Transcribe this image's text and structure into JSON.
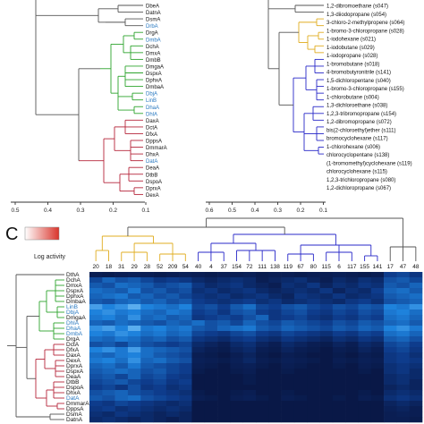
{
  "panel_c_label": "C",
  "colorbar": {
    "label": "Log activity",
    "low_color": "#ffffff",
    "high_color": "#d9342b"
  },
  "colors": {
    "green": "#2ea42e",
    "red": "#b5253a",
    "yellow": "#e0ac20",
    "blue": "#2929c8",
    "tree": "#555555",
    "highlight": "#2878c0"
  },
  "tree_a": {
    "axis_ticks": [
      "0.5",
      "0.4",
      "0.3",
      "0.2",
      "0.1"
    ],
    "leaves": [
      {
        "label": "DbeA",
        "clade": "gray",
        "highlight": false
      },
      {
        "label": "DatnA",
        "clade": "gray",
        "highlight": false
      },
      {
        "label": "DsmA",
        "clade": "gray",
        "highlight": false
      },
      {
        "label": "DrbA",
        "clade": "gray",
        "highlight": true
      },
      {
        "label": "DrgA",
        "clade": "green",
        "highlight": false
      },
      {
        "label": "DmbA",
        "clade": "green",
        "highlight": true
      },
      {
        "label": "DchA",
        "clade": "green",
        "highlight": false
      },
      {
        "label": "DmxA",
        "clade": "green",
        "highlight": false
      },
      {
        "label": "DmbB",
        "clade": "green",
        "highlight": false
      },
      {
        "label": "DmgaA",
        "clade": "green",
        "highlight": false
      },
      {
        "label": "DspxA",
        "clade": "green",
        "highlight": false
      },
      {
        "label": "DphxA",
        "clade": "green",
        "highlight": false
      },
      {
        "label": "DmbaA",
        "clade": "green",
        "highlight": false
      },
      {
        "label": "DbjA",
        "clade": "green",
        "highlight": true
      },
      {
        "label": "LinB",
        "clade": "green",
        "highlight": true
      },
      {
        "label": "DhaA",
        "clade": "green",
        "highlight": true
      },
      {
        "label": "DhlA",
        "clade": "green",
        "highlight": true
      },
      {
        "label": "DaxA",
        "clade": "red",
        "highlight": false
      },
      {
        "label": "DctA",
        "clade": "red",
        "highlight": false
      },
      {
        "label": "DfxA",
        "clade": "red",
        "highlight": false
      },
      {
        "label": "DppsA",
        "clade": "red",
        "highlight": false
      },
      {
        "label": "DmmarA",
        "clade": "red",
        "highlight": false
      },
      {
        "label": "DhxA",
        "clade": "red",
        "highlight": false
      },
      {
        "label": "DatA",
        "clade": "red",
        "highlight": true
      },
      {
        "label": "DeaA",
        "clade": "red",
        "highlight": false
      },
      {
        "label": "DtbB",
        "clade": "red",
        "highlight": false
      },
      {
        "label": "DspoA",
        "clade": "red",
        "highlight": false
      },
      {
        "label": "DprxA",
        "clade": "red",
        "highlight": false
      },
      {
        "label": "DexA",
        "clade": "red",
        "highlight": false
      }
    ]
  },
  "tree_b": {
    "axis_ticks": [
      "0.6",
      "0.5",
      "0.4",
      "0.3",
      "0.2",
      "0.1"
    ],
    "leaves": [
      {
        "label": "1,2-dibromoethane (s047)",
        "clade": "gray"
      },
      {
        "label": "1,3-diiodopropane (s054)",
        "clade": "gray"
      },
      {
        "label": "3-chloro-2-methylpropene (s064)",
        "clade": "yellow"
      },
      {
        "label": "1-bromo-3-chloropropane (s028)",
        "clade": "yellow"
      },
      {
        "label": "1-iodohexane (s021)",
        "clade": "yellow"
      },
      {
        "label": "1-iodobutane (s029)",
        "clade": "yellow"
      },
      {
        "label": "1-iodopropane (s028)",
        "clade": "yellow"
      },
      {
        "label": "1-bromobutane (s018)",
        "clade": "yellow"
      },
      {
        "label": "4-bromobutyronitrile (s141)",
        "clade": "blue"
      },
      {
        "label": "1,5-dichloropentane (s040)",
        "clade": "blue"
      },
      {
        "label": "1-bromo-3-chloropropane (s155)",
        "clade": "blue"
      },
      {
        "label": "1-chlorobutane (s004)",
        "clade": "blue"
      },
      {
        "label": "1,3-dichloroethane (s038)",
        "clade": "blue"
      },
      {
        "label": "1,2,3-tribromopropane (s154)",
        "clade": "blue"
      },
      {
        "label": "1,2-dibromopropane (s072)",
        "clade": "blue"
      },
      {
        "label": "bis(2-chloroethyl)ether (s111)",
        "clade": "blue"
      },
      {
        "label": "bromocyclohexane (s117)",
        "clade": "blue"
      },
      {
        "label": "1-chlorohexane (s006)",
        "clade": "blue"
      },
      {
        "label": "chlorocyclopentane (s138)",
        "clade": "blue"
      },
      {
        "label": "(1-bromomethyl)cyclohexane (s119)",
        "clade": "blue"
      },
      {
        "label": "chlorocyclohexane (s115)",
        "clade": "blue"
      },
      {
        "label": "1,2,3-trichloropropane (s080)",
        "clade": "blue"
      },
      {
        "label": "1,2-dichloropropane (s067)",
        "clade": "blue"
      }
    ]
  },
  "heatmap": {
    "columns": [
      "20",
      "18",
      "31",
      "29",
      "28",
      "52",
      "209",
      "54",
      "40",
      "4",
      "37",
      "154",
      "72",
      "111",
      "138",
      "119",
      "67",
      "80",
      "115",
      "6",
      "117",
      "155",
      "141",
      "17",
      "47",
      "48"
    ],
    "column_clades": [
      "yellow",
      "yellow",
      "yellow",
      "yellow",
      "yellow",
      "yellow",
      "yellow",
      "yellow",
      "blue",
      "blue",
      "blue",
      "blue",
      "blue",
      "blue",
      "blue",
      "blue",
      "blue",
      "blue",
      "blue",
      "blue",
      "blue",
      "blue",
      "blue",
      "gray",
      "gray",
      "gray"
    ],
    "rows": [
      {
        "label": "DthA",
        "clade": "gray",
        "highlight": false
      },
      {
        "label": "DchA",
        "clade": "green",
        "highlight": false
      },
      {
        "label": "DmxA",
        "clade": "green",
        "highlight": false
      },
      {
        "label": "DspxA",
        "clade": "green",
        "highlight": false
      },
      {
        "label": "DphxA",
        "clade": "green",
        "highlight": false
      },
      {
        "label": "DmbaA",
        "clade": "green",
        "highlight": false
      },
      {
        "label": "LinB",
        "clade": "green",
        "highlight": true
      },
      {
        "label": "DbjA",
        "clade": "green",
        "highlight": true
      },
      {
        "label": "DmgaA",
        "clade": "green",
        "highlight": false
      },
      {
        "label": "DhlA",
        "clade": "green",
        "highlight": true
      },
      {
        "label": "DhaA",
        "clade": "green",
        "highlight": true
      },
      {
        "label": "DmbA",
        "clade": "green",
        "highlight": true
      },
      {
        "label": "DrgA",
        "clade": "green",
        "highlight": false
      },
      {
        "label": "DctA",
        "clade": "red",
        "highlight": false
      },
      {
        "label": "DfxA",
        "clade": "red",
        "highlight": false
      },
      {
        "label": "DaxA",
        "clade": "red",
        "highlight": false
      },
      {
        "label": "DexA",
        "clade": "red",
        "highlight": false
      },
      {
        "label": "DprxA",
        "clade": "red",
        "highlight": false
      },
      {
        "label": "DspxA",
        "clade": "red",
        "highlight": false
      },
      {
        "label": "DeaA",
        "clade": "red",
        "highlight": false
      },
      {
        "label": "DtbB",
        "clade": "red",
        "highlight": false
      },
      {
        "label": "DspoA",
        "clade": "red",
        "highlight": false
      },
      {
        "label": "DhxA",
        "clade": "red",
        "highlight": false
      },
      {
        "label": "DatA",
        "clade": "red",
        "highlight": true
      },
      {
        "label": "DmmarA",
        "clade": "red",
        "highlight": false
      },
      {
        "label": "DppsA",
        "clade": "red",
        "highlight": false
      },
      {
        "label": "DsmA",
        "clade": "gray",
        "highlight": false
      },
      {
        "label": "DatnA",
        "clade": "gray",
        "highlight": false
      }
    ],
    "cells": [
      [
        0.1,
        0.08,
        0.1,
        0.12,
        0.1,
        0.08,
        0.1,
        0.12,
        0.1,
        0.08,
        0.1,
        0.1,
        0.12,
        0.08,
        0.1,
        0.1,
        0.08,
        0.1,
        0.1,
        0.12,
        0.1,
        0.08,
        0.1,
        0.35,
        0.4,
        0.3
      ],
      [
        0.4,
        0.55,
        0.45,
        0.5,
        0.4,
        0.3,
        0.35,
        0.3,
        0.2,
        0.15,
        0.2,
        0.25,
        0.2,
        0.1,
        0.15,
        0.2,
        0.25,
        0.15,
        0.1,
        0.2,
        0.15,
        0.25,
        0.2,
        0.45,
        0.5,
        0.4
      ],
      [
        0.5,
        0.45,
        0.6,
        0.55,
        0.5,
        0.4,
        0.45,
        0.5,
        0.3,
        0.2,
        0.25,
        0.3,
        0.2,
        0.15,
        0.1,
        0.25,
        0.2,
        0.3,
        0.15,
        0.25,
        0.2,
        0.3,
        0.25,
        0.5,
        0.45,
        0.55
      ],
      [
        0.6,
        0.55,
        0.5,
        0.65,
        0.45,
        0.5,
        0.4,
        0.45,
        0.25,
        0.3,
        0.2,
        0.25,
        0.3,
        0.2,
        0.15,
        0.2,
        0.25,
        0.2,
        0.3,
        0.15,
        0.25,
        0.2,
        0.35,
        0.55,
        0.6,
        0.5
      ],
      [
        0.55,
        0.6,
        0.65,
        0.5,
        0.55,
        0.45,
        0.5,
        0.4,
        0.3,
        0.25,
        0.3,
        0.2,
        0.25,
        0.3,
        0.2,
        0.15,
        0.3,
        0.25,
        0.2,
        0.3,
        0.2,
        0.25,
        0.3,
        0.5,
        0.55,
        0.6
      ],
      [
        0.5,
        0.45,
        0.55,
        0.6,
        0.5,
        0.55,
        0.45,
        0.5,
        0.35,
        0.3,
        0.25,
        0.3,
        0.35,
        0.25,
        0.3,
        0.2,
        0.25,
        0.3,
        0.25,
        0.2,
        0.3,
        0.35,
        0.25,
        0.45,
        0.5,
        0.55
      ],
      [
        0.8,
        0.7,
        0.75,
        0.85,
        0.7,
        0.65,
        0.6,
        0.7,
        0.4,
        0.45,
        0.35,
        0.5,
        0.6,
        0.4,
        0.35,
        0.45,
        0.5,
        0.4,
        0.35,
        0.45,
        0.4,
        0.5,
        0.45,
        0.7,
        0.65,
        0.75
      ],
      [
        0.7,
        0.75,
        0.65,
        0.7,
        0.6,
        0.55,
        0.65,
        0.6,
        0.35,
        0.4,
        0.3,
        0.45,
        0.5,
        0.35,
        0.3,
        0.4,
        0.45,
        0.35,
        0.3,
        0.4,
        0.35,
        0.45,
        0.4,
        0.65,
        0.7,
        0.6
      ],
      [
        0.65,
        0.7,
        0.6,
        0.75,
        0.55,
        0.6,
        0.5,
        0.55,
        0.3,
        0.35,
        0.4,
        0.35,
        0.45,
        0.55,
        0.3,
        0.35,
        0.4,
        0.3,
        0.25,
        0.35,
        0.3,
        0.4,
        0.35,
        0.6,
        0.65,
        0.55
      ],
      [
        0.55,
        0.5,
        0.6,
        0.55,
        0.5,
        0.45,
        0.55,
        0.5,
        0.6,
        0.45,
        0.5,
        0.4,
        0.55,
        0.45,
        0.4,
        0.5,
        0.45,
        0.4,
        0.35,
        0.45,
        0.4,
        0.5,
        0.45,
        0.55,
        0.6,
        0.5
      ],
      [
        0.75,
        0.8,
        0.7,
        0.85,
        0.65,
        0.7,
        0.6,
        0.65,
        0.5,
        0.45,
        0.55,
        0.6,
        0.65,
        0.5,
        0.45,
        0.55,
        0.5,
        0.45,
        0.4,
        0.5,
        0.45,
        0.55,
        0.5,
        0.7,
        0.75,
        0.65
      ],
      [
        0.7,
        0.65,
        0.75,
        0.7,
        0.6,
        0.65,
        0.55,
        0.6,
        0.4,
        0.35,
        0.3,
        0.4,
        0.45,
        0.35,
        0.3,
        0.4,
        0.35,
        0.3,
        0.25,
        0.35,
        0.3,
        0.4,
        0.35,
        0.6,
        0.65,
        0.55
      ],
      [
        0.6,
        0.55,
        0.65,
        0.6,
        0.5,
        0.55,
        0.45,
        0.5,
        0.3,
        0.25,
        0.2,
        0.3,
        0.35,
        0.25,
        0.2,
        0.3,
        0.25,
        0.2,
        0.15,
        0.25,
        0.2,
        0.3,
        0.25,
        0.5,
        0.55,
        0.45
      ],
      [
        0.45,
        0.5,
        0.4,
        0.55,
        0.45,
        0.4,
        0.35,
        0.4,
        0.2,
        0.15,
        0.1,
        0.2,
        0.25,
        0.15,
        0.1,
        0.2,
        0.15,
        0.1,
        0.08,
        0.15,
        0.1,
        0.2,
        0.15,
        0.4,
        0.45,
        0.35
      ],
      [
        0.7,
        0.75,
        0.65,
        0.8,
        0.6,
        0.55,
        0.5,
        0.45,
        0.15,
        0.1,
        0.08,
        0.15,
        0.2,
        0.1,
        0.08,
        0.15,
        0.1,
        0.08,
        0.05,
        0.1,
        0.08,
        0.15,
        0.1,
        0.35,
        0.4,
        0.3
      ],
      [
        0.6,
        0.55,
        0.65,
        0.7,
        0.6,
        0.5,
        0.45,
        0.4,
        0.1,
        0.08,
        0.05,
        0.1,
        0.15,
        0.08,
        0.05,
        0.1,
        0.08,
        0.05,
        0.05,
        0.08,
        0.05,
        0.1,
        0.08,
        0.3,
        0.35,
        0.25
      ],
      [
        0.65,
        0.7,
        0.6,
        0.75,
        0.55,
        0.6,
        0.5,
        0.45,
        0.12,
        0.1,
        0.08,
        0.12,
        0.18,
        0.1,
        0.08,
        0.12,
        0.1,
        0.08,
        0.05,
        0.1,
        0.08,
        0.12,
        0.1,
        0.3,
        0.35,
        0.3
      ],
      [
        0.55,
        0.6,
        0.5,
        0.65,
        0.5,
        0.45,
        0.4,
        0.35,
        0.1,
        0.08,
        0.05,
        0.1,
        0.12,
        0.08,
        0.05,
        0.1,
        0.08,
        0.05,
        0.05,
        0.08,
        0.05,
        0.1,
        0.08,
        0.25,
        0.3,
        0.25
      ],
      [
        0.5,
        0.55,
        0.6,
        0.55,
        0.45,
        0.5,
        0.4,
        0.35,
        0.08,
        0.05,
        0.05,
        0.08,
        0.1,
        0.05,
        0.05,
        0.08,
        0.05,
        0.05,
        0.05,
        0.05,
        0.05,
        0.08,
        0.05,
        0.25,
        0.3,
        0.2
      ],
      [
        0.45,
        0.5,
        0.4,
        0.55,
        0.4,
        0.45,
        0.35,
        0.3,
        0.05,
        0.05,
        0.05,
        0.05,
        0.08,
        0.05,
        0.05,
        0.05,
        0.05,
        0.05,
        0.05,
        0.05,
        0.05,
        0.05,
        0.05,
        0.2,
        0.25,
        0.2
      ],
      [
        0.4,
        0.45,
        0.5,
        0.4,
        0.35,
        0.4,
        0.3,
        0.35,
        0.05,
        0.05,
        0.05,
        0.05,
        0.08,
        0.05,
        0.05,
        0.05,
        0.05,
        0.05,
        0.05,
        0.05,
        0.05,
        0.05,
        0.05,
        0.2,
        0.25,
        0.15
      ],
      [
        0.35,
        0.4,
        0.3,
        0.45,
        0.3,
        0.35,
        0.25,
        0.3,
        0.05,
        0.05,
        0.05,
        0.05,
        0.05,
        0.05,
        0.05,
        0.05,
        0.05,
        0.05,
        0.05,
        0.05,
        0.05,
        0.05,
        0.05,
        0.15,
        0.2,
        0.15
      ],
      [
        0.45,
        0.5,
        0.55,
        0.45,
        0.4,
        0.35,
        0.3,
        0.25,
        0.08,
        0.05,
        0.05,
        0.08,
        0.1,
        0.05,
        0.05,
        0.08,
        0.05,
        0.05,
        0.05,
        0.05,
        0.05,
        0.08,
        0.05,
        0.2,
        0.25,
        0.2
      ],
      [
        0.5,
        0.45,
        0.55,
        0.6,
        0.45,
        0.4,
        0.35,
        0.3,
        0.1,
        0.08,
        0.05,
        0.1,
        0.12,
        0.08,
        0.05,
        0.1,
        0.08,
        0.05,
        0.05,
        0.08,
        0.05,
        0.1,
        0.08,
        0.25,
        0.3,
        0.25
      ],
      [
        0.35,
        0.3,
        0.4,
        0.35,
        0.3,
        0.25,
        0.2,
        0.25,
        0.05,
        0.05,
        0.05,
        0.05,
        0.05,
        0.05,
        0.05,
        0.05,
        0.05,
        0.05,
        0.05,
        0.05,
        0.05,
        0.05,
        0.05,
        0.15,
        0.2,
        0.15
      ],
      [
        0.3,
        0.35,
        0.25,
        0.3,
        0.25,
        0.2,
        0.25,
        0.2,
        0.05,
        0.05,
        0.05,
        0.05,
        0.05,
        0.05,
        0.05,
        0.05,
        0.05,
        0.05,
        0.05,
        0.05,
        0.05,
        0.05,
        0.05,
        0.12,
        0.15,
        0.1
      ],
      [
        0.25,
        0.2,
        0.3,
        0.25,
        0.2,
        0.15,
        0.2,
        0.15,
        0.05,
        0.05,
        0.05,
        0.05,
        0.05,
        0.05,
        0.05,
        0.05,
        0.05,
        0.05,
        0.05,
        0.05,
        0.05,
        0.05,
        0.05,
        0.1,
        0.12,
        0.1
      ],
      [
        0.2,
        0.25,
        0.2,
        0.15,
        0.2,
        0.15,
        0.1,
        0.15,
        0.05,
        0.05,
        0.05,
        0.05,
        0.05,
        0.05,
        0.05,
        0.05,
        0.05,
        0.05,
        0.05,
        0.05,
        0.05,
        0.05,
        0.05,
        0.1,
        0.1,
        0.08
      ]
    ]
  }
}
